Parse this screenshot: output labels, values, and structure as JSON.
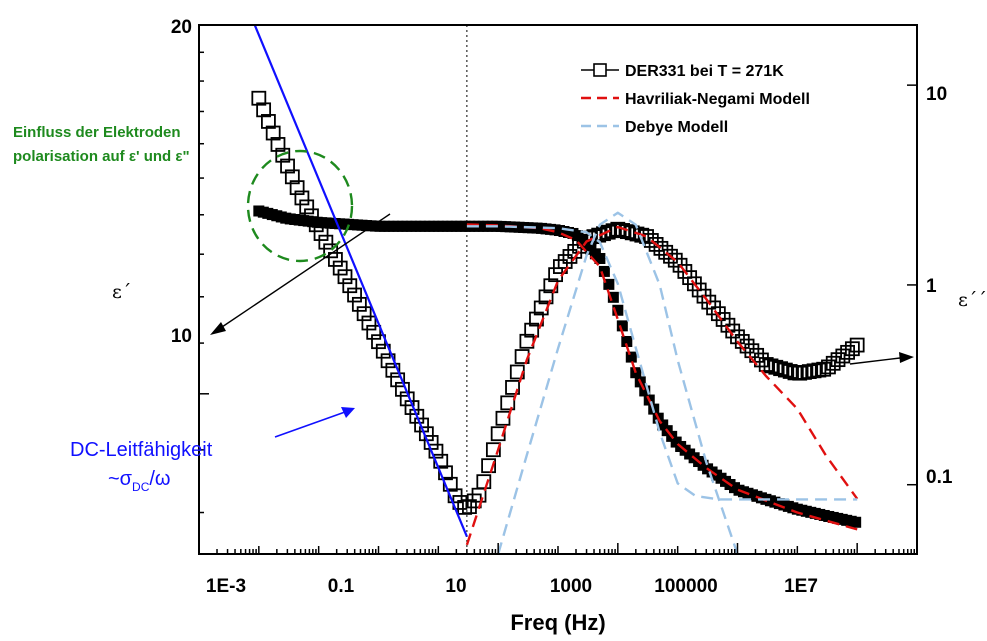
{
  "chart_data": {
    "type": "scatter",
    "xlabel": "Freq (Hz)",
    "x_scale": "log",
    "x_ticks": [
      "1E-3",
      "0.1",
      "10",
      "1000",
      "100000",
      "1E7"
    ],
    "xlim": [
      0.0001,
      100000000
    ],
    "y_left": {
      "label": "ε´",
      "scale": "log",
      "ticks": [
        "10",
        "20"
      ],
      "ylim": [
        7.4,
        20
      ]
    },
    "y_right": {
      "label": "ε´´",
      "scale": "log",
      "ticks": [
        "0.1",
        "1",
        "10"
      ],
      "ylim": [
        0.045,
        20
      ]
    },
    "legend": {
      "placement": "top-right",
      "entries": [
        "DER331 bei T = 271K",
        "Havriliak-Negami Modell",
        "Debye Modell"
      ]
    },
    "series": [
      {
        "name": "DER331 bei T = 271K",
        "quantity": "ε´",
        "axis": "left",
        "marker": "filled-square",
        "x": [
          0.001,
          0.003,
          0.01,
          0.1,
          1,
          3,
          10,
          50,
          100,
          200,
          500,
          1000,
          2000,
          5000,
          10000,
          30000,
          100000,
          300000,
          1000000,
          3000000,
          10000000
        ],
        "y": [
          14.1,
          13.9,
          13.8,
          13.7,
          13.7,
          13.7,
          13.7,
          13.65,
          13.6,
          13.5,
          12.9,
          11.7,
          10.4,
          9.5,
          9.1,
          8.7,
          8.35,
          8.2,
          8.05,
          7.95,
          7.85
        ]
      },
      {
        "name": "DER331 bei T = 271K",
        "quantity": "ε´´",
        "axis": "right",
        "marker": "open-square",
        "x": [
          0.001,
          0.002,
          0.005,
          0.01,
          0.03,
          0.1,
          0.3,
          1,
          2,
          3,
          5,
          10,
          30,
          100,
          300,
          1000,
          3000,
          10000,
          30000,
          100000,
          300000,
          1000000,
          3000000,
          10000000
        ],
        "y": [
          8.6,
          5.2,
          2.8,
          1.9,
          1.05,
          0.52,
          0.27,
          0.14,
          0.085,
          0.075,
          0.09,
          0.18,
          0.52,
          1.2,
          1.7,
          1.9,
          1.75,
          1.3,
          0.85,
          0.55,
          0.4,
          0.36,
          0.38,
          0.5
        ]
      },
      {
        "name": "Havriliak-Negami Modell",
        "quantity": "ε´",
        "axis": "left",
        "line": "dashed-red",
        "x": [
          3,
          10,
          50,
          100,
          200,
          500,
          1000,
          2000,
          5000,
          10000,
          30000,
          100000,
          1000000,
          10000000
        ],
        "y": [
          13.75,
          13.72,
          13.65,
          13.55,
          13.35,
          12.7,
          11.5,
          10.4,
          9.5,
          9.1,
          8.7,
          8.35,
          8.0,
          7.75
        ]
      },
      {
        "name": "Havriliak-Negami Modell",
        "quantity": "ε´´",
        "axis": "right",
        "line": "dashed-red",
        "x": [
          3,
          10,
          30,
          100,
          300,
          1000,
          3000,
          10000,
          30000,
          100000,
          300000,
          1000000,
          3000000,
          10000000
        ],
        "y": [
          0.05,
          0.15,
          0.42,
          1.05,
          1.65,
          1.95,
          1.75,
          1.3,
          0.85,
          0.52,
          0.35,
          0.24,
          0.14,
          0.085
        ]
      },
      {
        "name": "Debye Modell",
        "quantity": "ε´",
        "axis": "left",
        "line": "dashed-lightblue",
        "x": [
          3,
          10,
          100,
          300,
          500,
          1000,
          2000,
          5000,
          10000,
          20000,
          50000,
          100000,
          1000000,
          10000000
        ],
        "y": [
          13.7,
          13.7,
          13.65,
          13.55,
          13.3,
          12.3,
          10.9,
          9.3,
          8.45,
          8.25,
          8.2,
          8.2,
          8.2,
          8.2
        ]
      },
      {
        "name": "Debye Modell",
        "quantity": "ε´´",
        "axis": "right",
        "line": "dashed-lightblue",
        "x": [
          10,
          30,
          100,
          300,
          500,
          1000,
          2000,
          5000,
          10000,
          30000,
          100000
        ],
        "y": [
          0.045,
          0.14,
          0.48,
          1.4,
          2.0,
          2.3,
          2.0,
          1.0,
          0.42,
          0.13,
          0.045
        ]
      },
      {
        "name": "DC-Leitfähigkeit",
        "quantity": "ε´´",
        "axis": "right",
        "line": "solid-blue",
        "x": [
          0.0008,
          3
        ],
        "y": [
          21,
          0.055
        ]
      }
    ],
    "vertical_reference_line_x": 3,
    "annotations": [
      "Einfluss der Elektroden",
      "polarisation auf ε' und ε\"",
      "DC-Leitfähigkeit",
      "~σ",
      "DC",
      "/ω"
    ],
    "colors": {
      "data": "#000000",
      "havriliak_negami": "#e01010",
      "debye": "#9cc3e6",
      "dc_fit": "#1010ff",
      "electrode_annotation": "#1e8a1e"
    }
  }
}
